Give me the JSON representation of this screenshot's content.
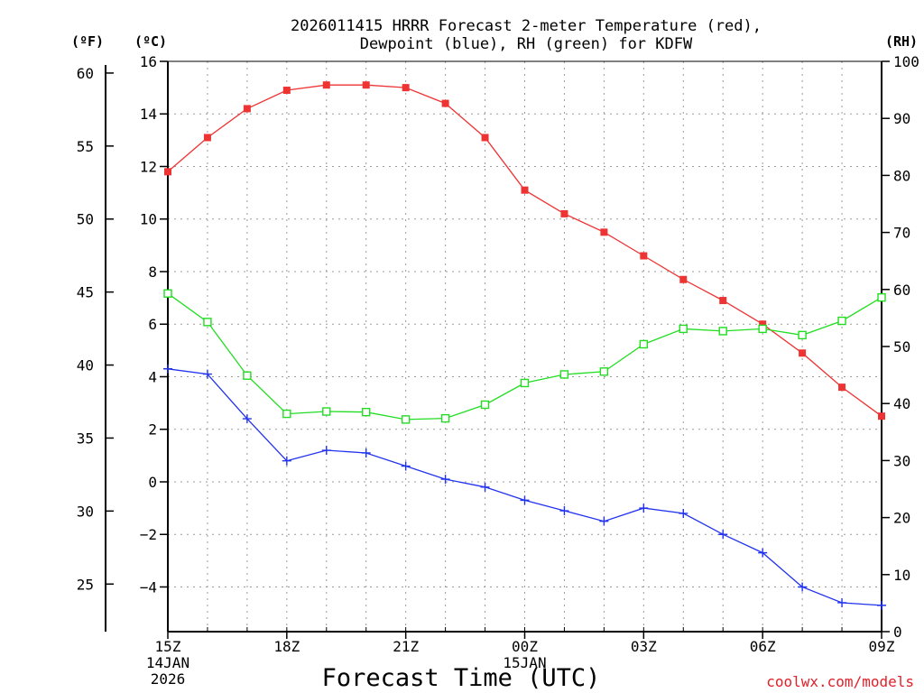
{
  "chart_data": {
    "type": "line",
    "title": "2026011415 HRRR Forecast 2-meter Temperature (red),",
    "title_line2": "Dewpoint (blue), RH (green) for KDFW",
    "units": {
      "fahrenheit": "(ºF)",
      "celsius": "(ºC)",
      "rh": "(RH)"
    },
    "xlabel": "Forecast Time (UTC)",
    "credit": "coolwx.com/models",
    "hours": [
      0,
      1,
      2,
      3,
      4,
      5,
      6,
      7,
      8,
      9,
      10,
      11,
      12,
      13,
      14,
      15,
      16,
      17,
      18
    ],
    "xlim": [
      0,
      18
    ],
    "x_ticks": [
      {
        "h": 0,
        "label": "15Z",
        "date": "14JAN",
        "year": "2026"
      },
      {
        "h": 3,
        "label": "18Z"
      },
      {
        "h": 6,
        "label": "21Z"
      },
      {
        "h": 9,
        "label": "00Z",
        "date": "15JAN"
      },
      {
        "h": 12,
        "label": "03Z"
      },
      {
        "h": 15,
        "label": "06Z"
      },
      {
        "h": 18,
        "label": "09Z"
      }
    ],
    "y_celsius": {
      "lim": [
        -5.7,
        16
      ],
      "ticks": [
        16,
        14,
        12,
        10,
        8,
        6,
        4,
        2,
        0,
        -2,
        -4
      ],
      "tick_labels": [
        "16",
        "14",
        "12",
        "10",
        "8",
        "6",
        "4",
        "2",
        "0",
        "−2",
        "−4"
      ]
    },
    "y_fahrenheit": {
      "ticks": [
        60,
        55,
        50,
        45,
        40,
        35,
        30,
        25
      ],
      "tick_labels": [
        "60",
        "55",
        "50",
        "45",
        "40",
        "35",
        "30",
        "25"
      ]
    },
    "y_rh": {
      "lim": [
        0,
        100
      ],
      "ticks": [
        100,
        90,
        80,
        70,
        60,
        50,
        40,
        30,
        20,
        10,
        0
      ],
      "tick_labels": [
        "100",
        "90",
        "80",
        "70",
        "60",
        "50",
        "40",
        "30",
        "20",
        "10",
        "0"
      ]
    },
    "series": [
      {
        "name": "Temperature",
        "axis": "celsius",
        "color": "#ee3333",
        "marker": "filled-square",
        "values": [
          11.8,
          13.1,
          14.2,
          14.9,
          15.1,
          15.1,
          15.0,
          14.4,
          13.1,
          11.1,
          10.2,
          9.5,
          8.6,
          7.7,
          6.9,
          6.0,
          4.9,
          3.6,
          2.5
        ]
      },
      {
        "name": "Dewpoint",
        "axis": "celsius",
        "color": "#2233ee",
        "marker": "plus",
        "values": [
          4.3,
          4.1,
          2.4,
          0.8,
          1.2,
          1.1,
          0.6,
          0.1,
          -0.2,
          -0.7,
          -1.1,
          -1.5,
          -1.0,
          -1.2,
          -2.0,
          -2.7,
          -4.0,
          -4.6,
          -4.7
        ]
      },
      {
        "name": "RH",
        "axis": "rh",
        "color": "#22dd22",
        "marker": "open-square",
        "values": [
          59.3,
          54.3,
          44.9,
          38.2,
          38.6,
          38.5,
          37.2,
          37.4,
          39.8,
          43.6,
          45.1,
          45.6,
          50.4,
          53.1,
          52.7,
          53.1,
          52.0,
          54.5,
          58.6
        ]
      }
    ]
  }
}
